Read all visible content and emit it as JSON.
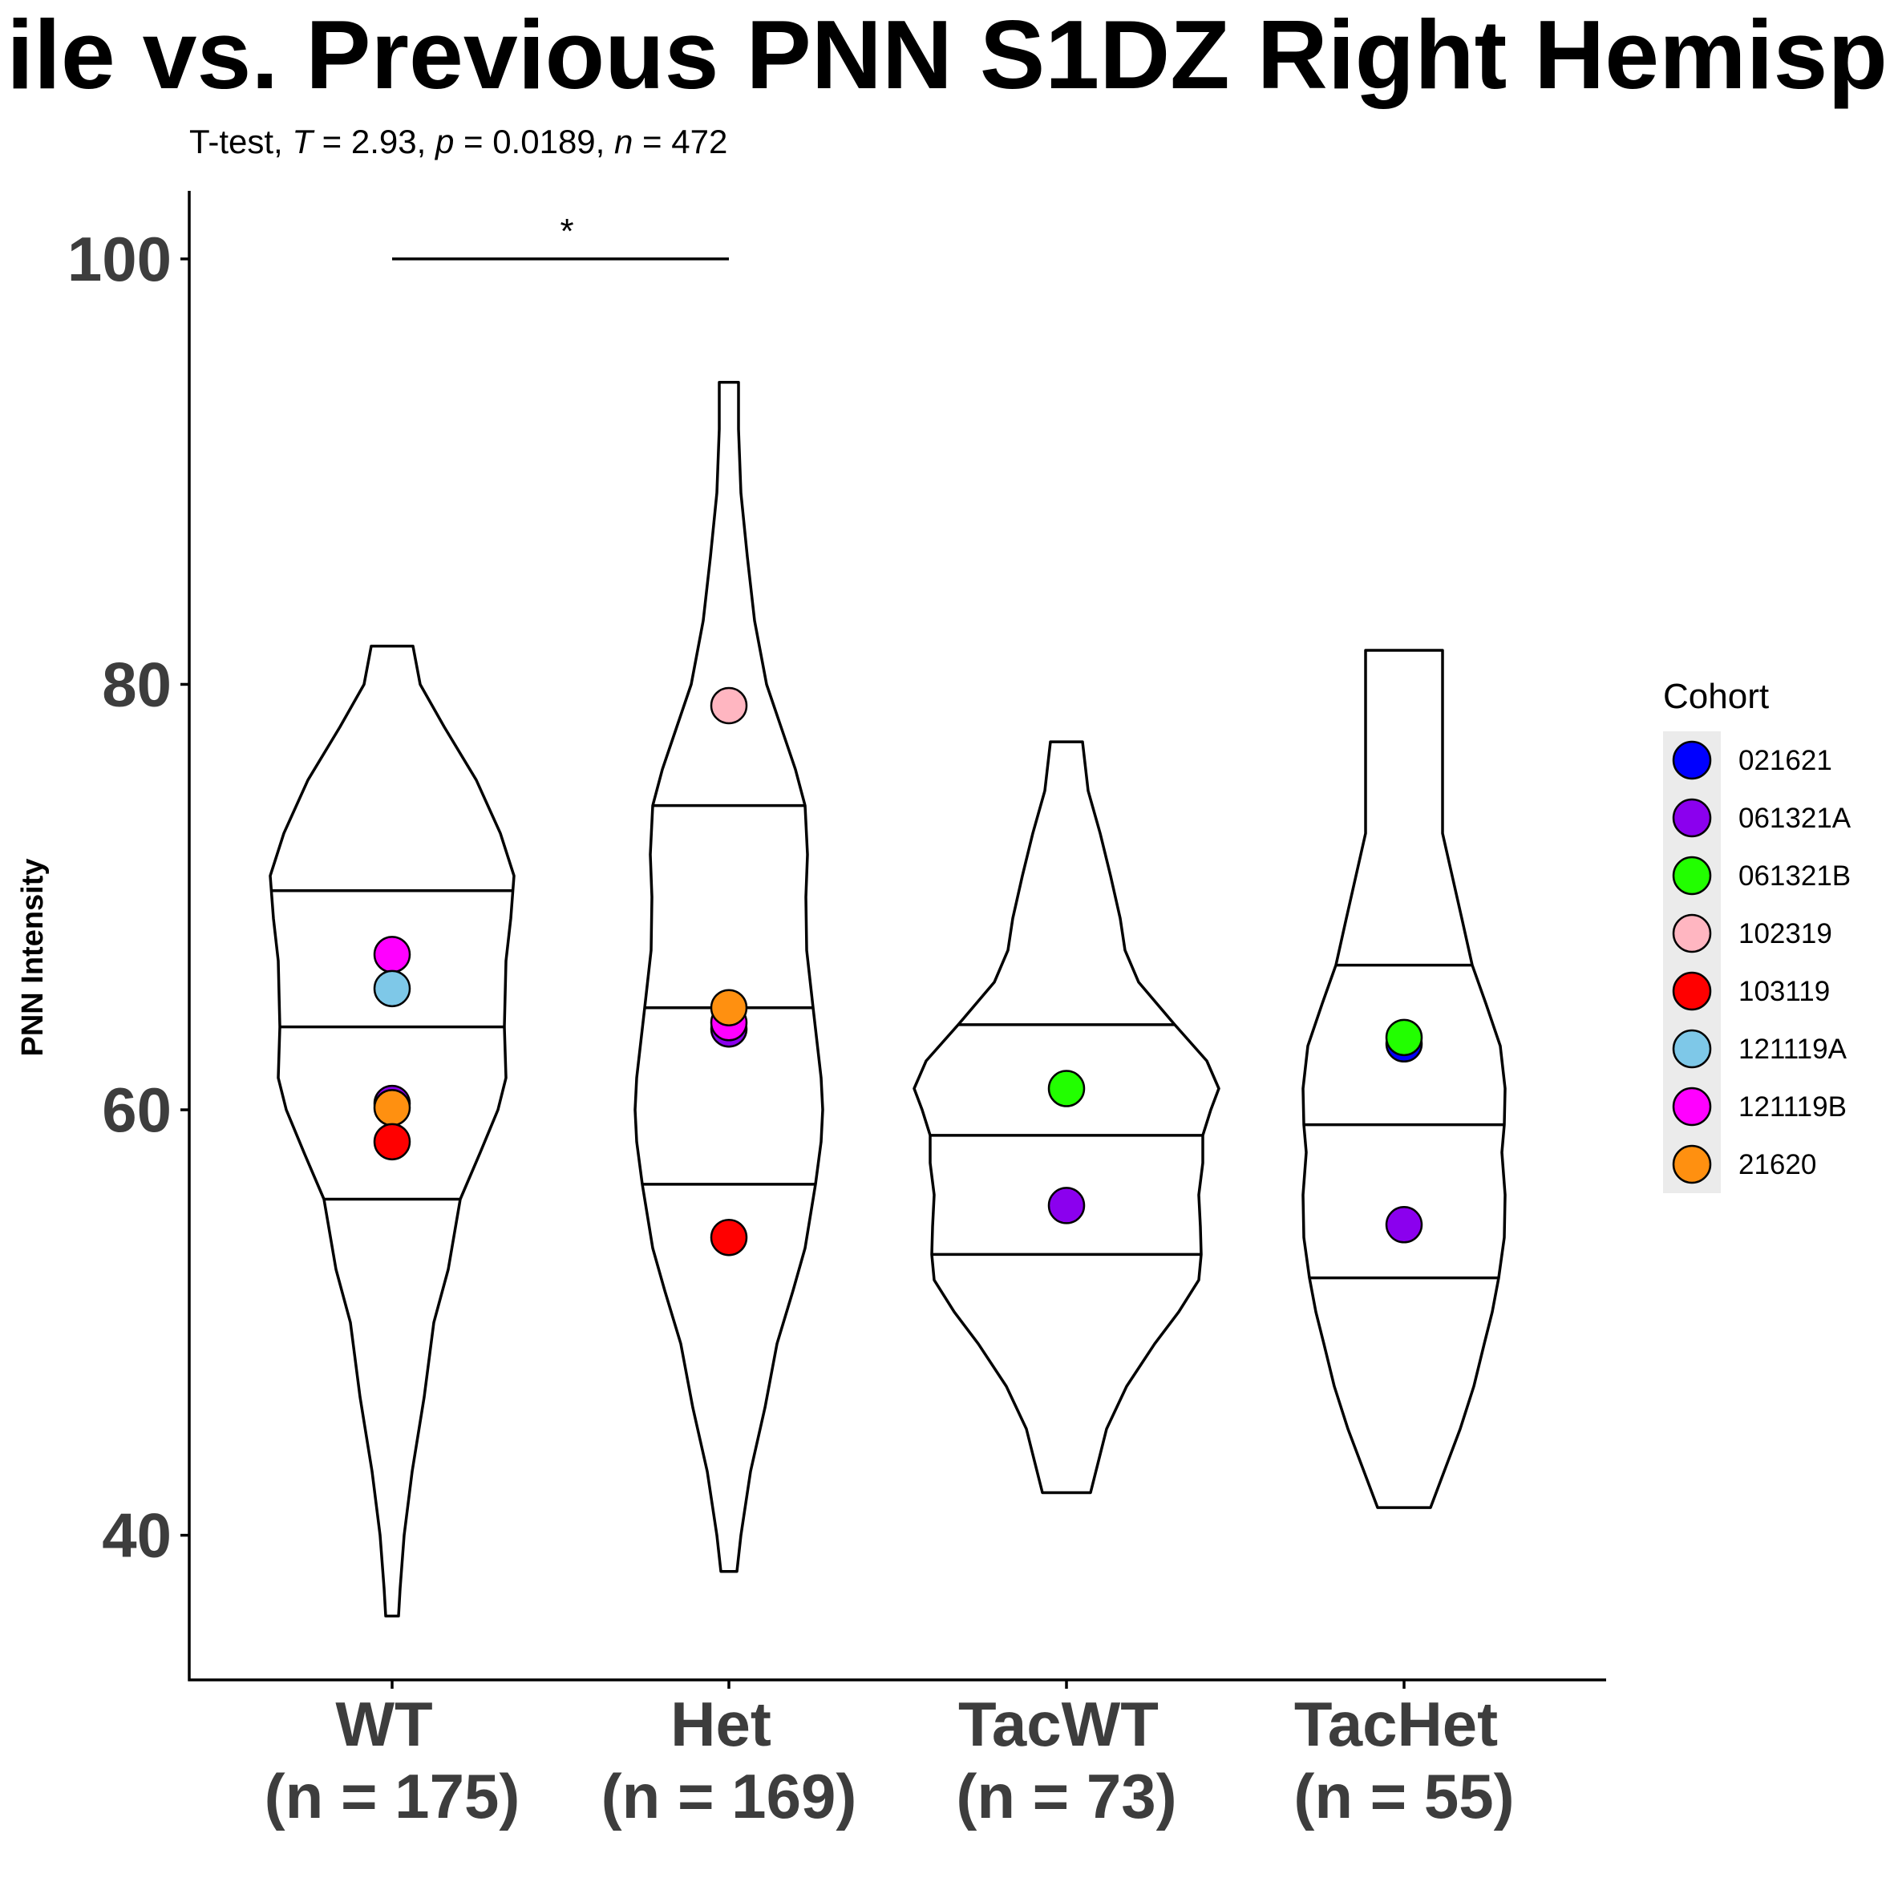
{
  "chart_data": {
    "type": "violin",
    "title": "ile vs. Previous PNN S1DZ Right Hemisp",
    "subtitle": {
      "test": "T-test, ",
      "t_sym": "T",
      "t_val": " = 2.93, ",
      "p_sym": "p",
      "p_val": " = 0.0189, ",
      "n_sym": "n",
      "n_val": " = 472"
    },
    "ylabel": "PNN Intensity",
    "ylim": [
      33.2,
      103.2
    ],
    "yticks": [
      "40",
      "60",
      "80",
      "100"
    ],
    "significance": {
      "from": "WT",
      "to": "Het",
      "y": 100,
      "label": "*"
    },
    "categories": [
      {
        "name": "WT",
        "line1": "WT",
        "line2": "(n = 175)",
        "min": 36.2,
        "max": 81.8,
        "q1": 55.8,
        "median": 63.9,
        "q3": 70.3
      },
      {
        "name": "Het",
        "line1": "Het",
        "line2": "(n = 169)",
        "min": 38.3,
        "max": 94.2,
        "q1": 56.5,
        "median": 64.8,
        "q3": 74.3
      },
      {
        "name": "TacWT",
        "line1": "TacWT",
        "line2": "(n = 73)",
        "min": 42.0,
        "max": 77.3,
        "q1": 53.2,
        "median": 58.8,
        "q3": 64.0
      },
      {
        "name": "TacHet",
        "line1": "TacHet",
        "line2": "(n = 55)",
        "min": 41.3,
        "max": 81.6,
        "q1": 52.1,
        "median": 59.3,
        "q3": 66.8
      }
    ],
    "points": [
      {
        "category": "WT",
        "cohort": "121119B",
        "y": 67.3
      },
      {
        "category": "WT",
        "cohort": "121119A",
        "y": 65.7
      },
      {
        "category": "WT",
        "cohort": "061321A",
        "y": 60.3
      },
      {
        "category": "WT",
        "cohort": "21620",
        "y": 60.1
      },
      {
        "category": "WT",
        "cohort": "103119",
        "y": 58.5
      },
      {
        "category": "Het",
        "cohort": "102319",
        "y": 79.0
      },
      {
        "category": "Het",
        "cohort": "061321A",
        "y": 63.8
      },
      {
        "category": "Het",
        "cohort": "121119B",
        "y": 64.1
      },
      {
        "category": "Het",
        "cohort": "21620",
        "y": 64.8
      },
      {
        "category": "Het",
        "cohort": "103119",
        "y": 54.0
      },
      {
        "category": "TacWT",
        "cohort": "061321B",
        "y": 61.0
      },
      {
        "category": "TacWT",
        "cohort": "061321A",
        "y": 55.5
      },
      {
        "category": "TacHet",
        "cohort": "021621",
        "y": 63.1
      },
      {
        "category": "TacHet",
        "cohort": "061321B",
        "y": 63.4
      },
      {
        "category": "TacHet",
        "cohort": "061321A",
        "y": 54.6
      }
    ],
    "legend": {
      "title": "Cohort",
      "placement": "right",
      "items": [
        {
          "label": "021621",
          "color": "#0000ff"
        },
        {
          "label": "061321A",
          "color": "#8b00ee"
        },
        {
          "label": "061321B",
          "color": "#22ff00"
        },
        {
          "label": "102319",
          "color": "#ffb6c1"
        },
        {
          "label": "103119",
          "color": "#ff0000"
        },
        {
          "label": "121119A",
          "color": "#7ec8e8"
        },
        {
          "label": "121119B",
          "color": "#ff00ff"
        },
        {
          "label": "21620",
          "color": "#ff9010"
        }
      ]
    }
  }
}
